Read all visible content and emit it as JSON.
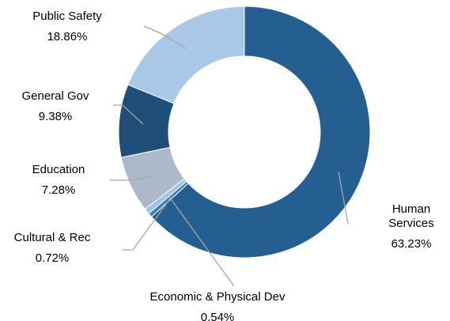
{
  "chart_data": {
    "type": "donut",
    "categories": [
      "Human Services",
      "Economic & Physical Dev",
      "Cultural & Rec",
      "Education",
      "General Gov",
      "Public Safety"
    ],
    "values": [
      63.23,
      0.54,
      0.72,
      7.28,
      9.38,
      18.86
    ],
    "value_labels": [
      "63.23%",
      "0.54%",
      "0.72%",
      "7.28%",
      "9.38%",
      "18.86%"
    ],
    "colors": [
      "#255e91",
      "#3a7cc0",
      "#9dc3e6",
      "#adb9ca",
      "#1f4e79",
      "#a9c8e8"
    ]
  }
}
